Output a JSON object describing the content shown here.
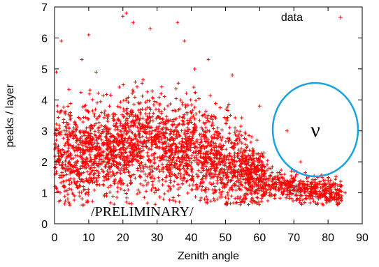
{
  "chart_data": {
    "type": "scatter",
    "xlabel": "Zenith angle",
    "ylabel": "peaks / layer",
    "xlim": [
      0,
      90
    ],
    "ylim": [
      0,
      7
    ],
    "xticks": [
      "0",
      "10",
      "20",
      "30",
      "40",
      "50",
      "60",
      "70",
      "80",
      "90"
    ],
    "yticks": [
      "0",
      "1",
      "2",
      "3",
      "4",
      "5",
      "6",
      "7"
    ],
    "legend": {
      "label": "data",
      "placement": "top-right",
      "marker": "+"
    },
    "series": [
      {
        "name": "data",
        "color": "#ff0000",
        "marker": "+",
        "trend": [
          {
            "x": 0,
            "y": 2.2
          },
          {
            "x": 10,
            "y": 2.3
          },
          {
            "x": 20,
            "y": 2.5
          },
          {
            "x": 30,
            "y": 2.6
          },
          {
            "x": 40,
            "y": 2.4
          },
          {
            "x": 50,
            "y": 2.0
          },
          {
            "x": 60,
            "y": 1.5
          },
          {
            "x": 70,
            "y": 1.15
          },
          {
            "x": 80,
            "y": 1.0
          },
          {
            "x": 84,
            "y": 0.95
          }
        ],
        "points": [
          {
            "x": 2,
            "y": 5.9
          },
          {
            "x": 8,
            "y": 5.3
          },
          {
            "x": 10,
            "y": 6.1
          },
          {
            "x": 20,
            "y": 6.7
          },
          {
            "x": 21,
            "y": 6.8
          },
          {
            "x": 23,
            "y": 6.5
          },
          {
            "x": 28,
            "y": 6.3
          },
          {
            "x": 36,
            "y": 6.5
          },
          {
            "x": 38,
            "y": 5.9
          },
          {
            "x": 45,
            "y": 5.3
          },
          {
            "x": 52,
            "y": 4.8
          },
          {
            "x": 60,
            "y": 3.8
          },
          {
            "x": 68,
            "y": 3.0
          },
          {
            "x": 72,
            "y": 2.0
          },
          {
            "x": 77,
            "y": 1.5
          },
          {
            "x": 80,
            "y": 1.4
          },
          {
            "x": 83,
            "y": 0.9
          },
          {
            "x": 84,
            "y": 0.9
          },
          {
            "x": 85,
            "y": 1.0
          },
          {
            "x": 0.5,
            "y": 4.9
          },
          {
            "x": 0.5,
            "y": 2.7
          }
        ]
      }
    ],
    "annotations": [
      {
        "text": "/PRELIMINARY/"
      },
      {
        "text": "ν",
        "shape": "ellipse",
        "color": "#1aa3e0",
        "center": {
          "x": 76,
          "y": 3.0
        }
      }
    ],
    "grid": false
  }
}
